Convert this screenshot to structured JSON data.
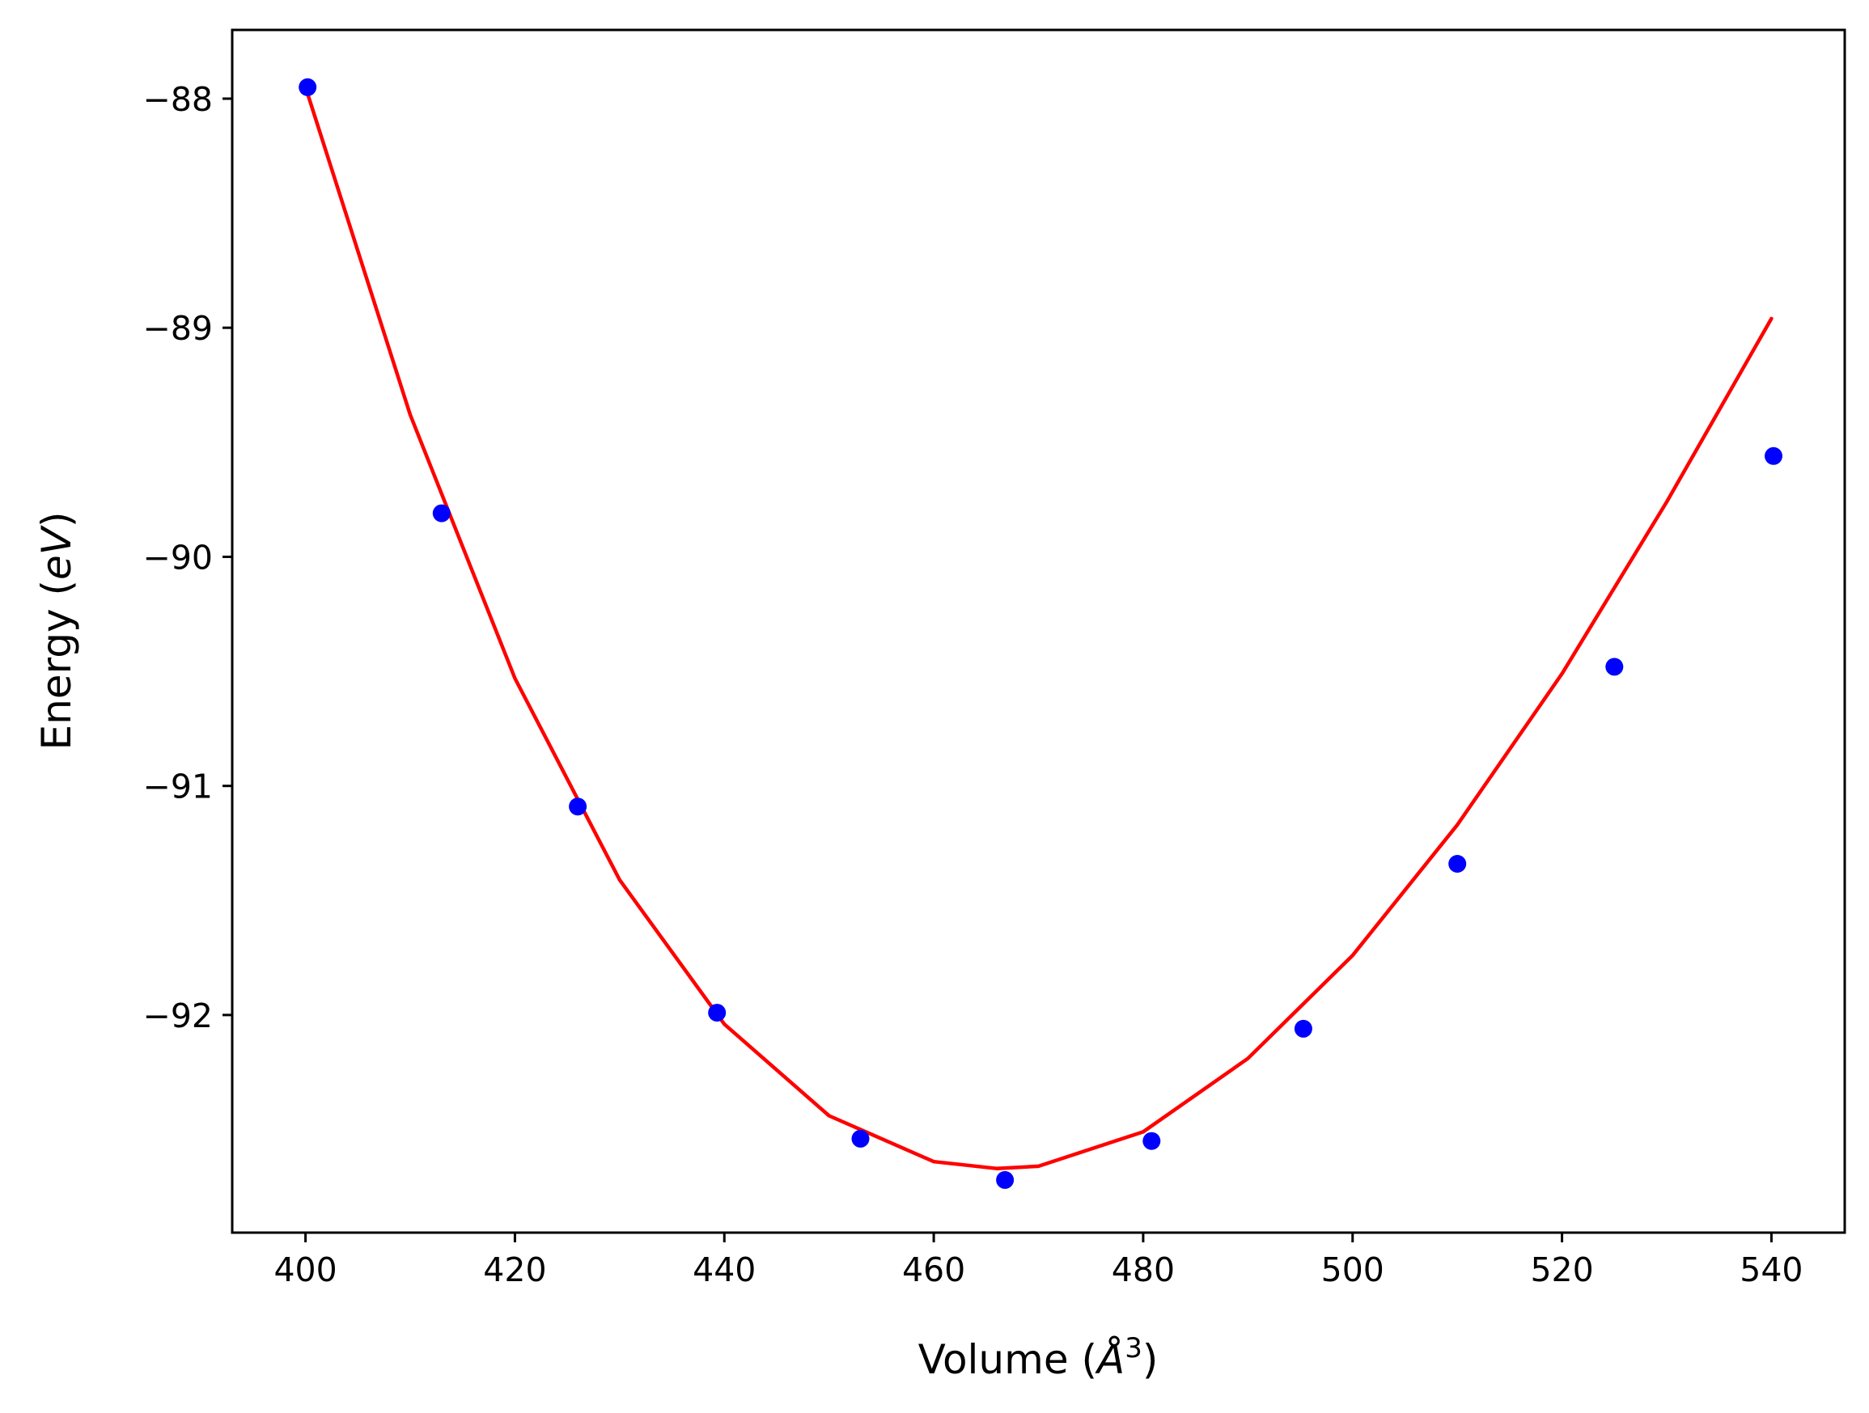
{
  "chart_data": {
    "type": "scatter",
    "title": "",
    "xlabel": "Volume (Å3)",
    "xlabel_parts": {
      "prefix": "Volume (",
      "symbol": "Å",
      "superscript": "3",
      "suffix": ")"
    },
    "ylabel": "Energy (eV)",
    "ylabel_parts": {
      "prefix": "Energy (",
      "symbol": "eV",
      "suffix": ")"
    },
    "xlim": [
      393,
      547
    ],
    "ylim": [
      -92.95,
      -87.7
    ],
    "xticks": [
      400,
      420,
      440,
      460,
      480,
      500,
      520,
      540
    ],
    "yticks": [
      -88,
      -89,
      -90,
      -91,
      -92
    ],
    "grid": false,
    "legend": "none",
    "series": [
      {
        "kind": "points",
        "color": "#0000ff",
        "x": [
          400.2,
          413.0,
          426.0,
          439.3,
          453.0,
          466.8,
          480.8,
          495.3,
          510.0,
          525.0,
          540.2
        ],
        "y": [
          -87.95,
          -89.81,
          -91.09,
          -91.99,
          -92.54,
          -92.72,
          -92.55,
          -92.06,
          -91.34,
          -90.48,
          -89.56
        ]
      },
      {
        "kind": "fit-curve",
        "color": "#ff0000",
        "x": [
          400,
          410,
          420,
          430,
          440,
          450,
          460,
          466,
          470,
          480,
          490,
          500,
          510,
          520,
          530,
          540
        ],
        "y": [
          -87.95,
          -89.38,
          -90.53,
          -91.41,
          -92.04,
          -92.44,
          -92.64,
          -92.67,
          -92.66,
          -92.51,
          -92.19,
          -91.74,
          -91.17,
          -90.51,
          -89.76,
          -88.96
        ]
      }
    ]
  }
}
